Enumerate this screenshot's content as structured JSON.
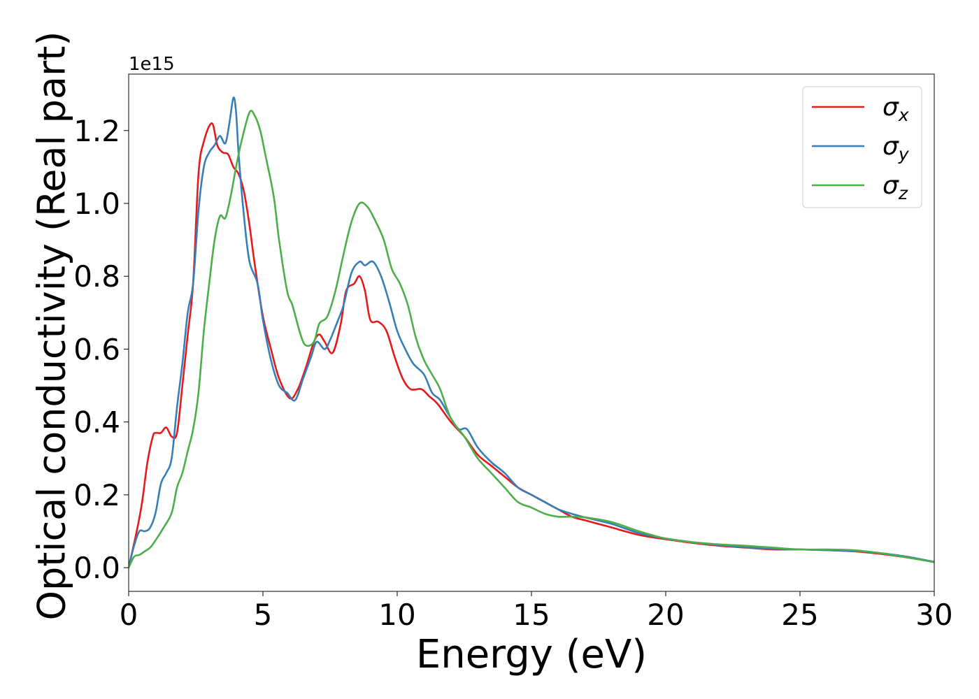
{
  "chart_data": {
    "type": "line",
    "title": "",
    "xlabel": "Energy (eV)",
    "ylabel": "Optical conductivity (Real part)",
    "offset_text": "1e15",
    "xlim": [
      0,
      30
    ],
    "ylim": [
      -0.065,
      1.355
    ],
    "x_ticks": [
      0,
      5,
      10,
      15,
      20,
      25,
      30
    ],
    "y_ticks": [
      0.0,
      0.2,
      0.4,
      0.6,
      0.8,
      1.0,
      1.2
    ],
    "x_tick_labels": [
      "0",
      "5",
      "10",
      "15",
      "20",
      "25",
      "30"
    ],
    "y_tick_labels": [
      "0.0",
      "0.2",
      "0.4",
      "0.6",
      "0.8",
      "1.0",
      "1.2"
    ],
    "grid": false,
    "legend_position": "top-right",
    "series": [
      {
        "name": "σx",
        "symbol": "σ",
        "sub": "x",
        "color": "#e41a1c",
        "points": [
          [
            0,
            0
          ],
          [
            0.3,
            0.1
          ],
          [
            0.5,
            0.18
          ],
          [
            0.7,
            0.29
          ],
          [
            0.9,
            0.36
          ],
          [
            1.0,
            0.37
          ],
          [
            1.2,
            0.37
          ],
          [
            1.4,
            0.385
          ],
          [
            1.6,
            0.36
          ],
          [
            1.8,
            0.37
          ],
          [
            2.0,
            0.5
          ],
          [
            2.2,
            0.64
          ],
          [
            2.4,
            0.78
          ],
          [
            2.6,
            1.08
          ],
          [
            2.8,
            1.17
          ],
          [
            3.1,
            1.22
          ],
          [
            3.3,
            1.16
          ],
          [
            3.5,
            1.14
          ],
          [
            3.7,
            1.135
          ],
          [
            3.9,
            1.1
          ],
          [
            4.1,
            1.08
          ],
          [
            4.3,
            1.03
          ],
          [
            4.5,
            0.94
          ],
          [
            4.7,
            0.83
          ],
          [
            5.0,
            0.69
          ],
          [
            5.3,
            0.6
          ],
          [
            5.6,
            0.52
          ],
          [
            6.0,
            0.465
          ],
          [
            6.3,
            0.49
          ],
          [
            6.6,
            0.55
          ],
          [
            6.9,
            0.62
          ],
          [
            7.1,
            0.64
          ],
          [
            7.3,
            0.62
          ],
          [
            7.6,
            0.59
          ],
          [
            7.9,
            0.67
          ],
          [
            8.1,
            0.76
          ],
          [
            8.4,
            0.78
          ],
          [
            8.6,
            0.8
          ],
          [
            8.8,
            0.76
          ],
          [
            9.0,
            0.68
          ],
          [
            9.3,
            0.675
          ],
          [
            9.6,
            0.65
          ],
          [
            9.9,
            0.58
          ],
          [
            10.2,
            0.52
          ],
          [
            10.5,
            0.49
          ],
          [
            10.9,
            0.49
          ],
          [
            11.2,
            0.47
          ],
          [
            11.5,
            0.45
          ],
          [
            12.0,
            0.4
          ],
          [
            12.5,
            0.36
          ],
          [
            13.0,
            0.31
          ],
          [
            13.5,
            0.28
          ],
          [
            14.0,
            0.25
          ],
          [
            14.5,
            0.22
          ],
          [
            15.0,
            0.2
          ],
          [
            15.5,
            0.18
          ],
          [
            16.0,
            0.16
          ],
          [
            16.5,
            0.14
          ],
          [
            17.0,
            0.13
          ],
          [
            17.5,
            0.12
          ],
          [
            18.0,
            0.11
          ],
          [
            19.0,
            0.09
          ],
          [
            20.0,
            0.078
          ],
          [
            21.0,
            0.068
          ],
          [
            22.0,
            0.06
          ],
          [
            23.0,
            0.055
          ],
          [
            24.0,
            0.05
          ],
          [
            25.0,
            0.05
          ],
          [
            26.0,
            0.048
          ],
          [
            27.0,
            0.045
          ],
          [
            28.0,
            0.038
          ],
          [
            29.0,
            0.028
          ],
          [
            30.0,
            0.016
          ]
        ]
      },
      {
        "name": "σy",
        "symbol": "σ",
        "sub": "y",
        "color": "#377eb8",
        "points": [
          [
            0,
            0
          ],
          [
            0.2,
            0.06
          ],
          [
            0.4,
            0.1
          ],
          [
            0.6,
            0.1
          ],
          [
            0.8,
            0.11
          ],
          [
            1.0,
            0.15
          ],
          [
            1.2,
            0.23
          ],
          [
            1.4,
            0.26
          ],
          [
            1.6,
            0.3
          ],
          [
            1.8,
            0.44
          ],
          [
            2.0,
            0.56
          ],
          [
            2.2,
            0.7
          ],
          [
            2.4,
            0.78
          ],
          [
            2.6,
            0.98
          ],
          [
            2.8,
            1.1
          ],
          [
            3.0,
            1.14
          ],
          [
            3.2,
            1.16
          ],
          [
            3.4,
            1.185
          ],
          [
            3.6,
            1.165
          ],
          [
            3.75,
            1.22
          ],
          [
            3.9,
            1.29
          ],
          [
            4.0,
            1.25
          ],
          [
            4.1,
            1.13
          ],
          [
            4.3,
            0.96
          ],
          [
            4.5,
            0.84
          ],
          [
            4.8,
            0.78
          ],
          [
            5.0,
            0.68
          ],
          [
            5.3,
            0.57
          ],
          [
            5.6,
            0.5
          ],
          [
            5.9,
            0.48
          ],
          [
            6.2,
            0.46
          ],
          [
            6.5,
            0.52
          ],
          [
            6.8,
            0.58
          ],
          [
            7.0,
            0.62
          ],
          [
            7.3,
            0.6
          ],
          [
            7.5,
            0.625
          ],
          [
            7.8,
            0.68
          ],
          [
            8.0,
            0.72
          ],
          [
            8.3,
            0.81
          ],
          [
            8.6,
            0.84
          ],
          [
            8.8,
            0.83
          ],
          [
            9.1,
            0.84
          ],
          [
            9.4,
            0.8
          ],
          [
            9.7,
            0.73
          ],
          [
            10.0,
            0.65
          ],
          [
            10.3,
            0.6
          ],
          [
            10.6,
            0.56
          ],
          [
            11.0,
            0.53
          ],
          [
            11.3,
            0.48
          ],
          [
            11.6,
            0.46
          ],
          [
            12.0,
            0.41
          ],
          [
            12.3,
            0.38
          ],
          [
            12.6,
            0.38
          ],
          [
            13.0,
            0.33
          ],
          [
            13.5,
            0.29
          ],
          [
            14.0,
            0.26
          ],
          [
            14.5,
            0.22
          ],
          [
            15.0,
            0.2
          ],
          [
            15.5,
            0.18
          ],
          [
            16.0,
            0.16
          ],
          [
            16.5,
            0.148
          ],
          [
            17.0,
            0.138
          ],
          [
            18.0,
            0.12
          ],
          [
            19.0,
            0.095
          ],
          [
            20.0,
            0.08
          ],
          [
            21.0,
            0.07
          ],
          [
            22.0,
            0.062
          ],
          [
            23.0,
            0.056
          ],
          [
            24.0,
            0.052
          ],
          [
            25.0,
            0.05
          ],
          [
            26.0,
            0.048
          ],
          [
            27.0,
            0.046
          ],
          [
            28.0,
            0.04
          ],
          [
            29.0,
            0.03
          ],
          [
            30.0,
            0.016
          ]
        ]
      },
      {
        "name": "σz",
        "symbol": "σ",
        "sub": "z",
        "color": "#4daf4a",
        "points": [
          [
            0,
            0
          ],
          [
            0.2,
            0.03
          ],
          [
            0.4,
            0.035
          ],
          [
            0.6,
            0.045
          ],
          [
            0.8,
            0.055
          ],
          [
            1.0,
            0.075
          ],
          [
            1.3,
            0.11
          ],
          [
            1.6,
            0.15
          ],
          [
            1.8,
            0.22
          ],
          [
            2.0,
            0.26
          ],
          [
            2.2,
            0.32
          ],
          [
            2.4,
            0.38
          ],
          [
            2.6,
            0.48
          ],
          [
            2.8,
            0.65
          ],
          [
            3.0,
            0.78
          ],
          [
            3.2,
            0.9
          ],
          [
            3.4,
            0.965
          ],
          [
            3.6,
            0.96
          ],
          [
            3.8,
            1.02
          ],
          [
            4.0,
            1.1
          ],
          [
            4.2,
            1.17
          ],
          [
            4.5,
            1.25
          ],
          [
            4.7,
            1.24
          ],
          [
            4.9,
            1.2
          ],
          [
            5.1,
            1.13
          ],
          [
            5.4,
            1.02
          ],
          [
            5.6,
            0.9
          ],
          [
            5.9,
            0.76
          ],
          [
            6.1,
            0.72
          ],
          [
            6.4,
            0.64
          ],
          [
            6.6,
            0.61
          ],
          [
            6.9,
            0.62
          ],
          [
            7.1,
            0.67
          ],
          [
            7.4,
            0.69
          ],
          [
            7.7,
            0.76
          ],
          [
            8.0,
            0.86
          ],
          [
            8.3,
            0.95
          ],
          [
            8.6,
            1.0
          ],
          [
            8.9,
            0.99
          ],
          [
            9.2,
            0.95
          ],
          [
            9.5,
            0.9
          ],
          [
            9.8,
            0.82
          ],
          [
            10.1,
            0.78
          ],
          [
            10.4,
            0.72
          ],
          [
            10.7,
            0.63
          ],
          [
            11.0,
            0.57
          ],
          [
            11.3,
            0.53
          ],
          [
            11.6,
            0.49
          ],
          [
            12.0,
            0.41
          ],
          [
            12.5,
            0.36
          ],
          [
            13.0,
            0.3
          ],
          [
            13.5,
            0.26
          ],
          [
            14.0,
            0.22
          ],
          [
            14.5,
            0.18
          ],
          [
            15.0,
            0.165
          ],
          [
            15.5,
            0.148
          ],
          [
            16.0,
            0.14
          ],
          [
            16.5,
            0.14
          ],
          [
            17.0,
            0.138
          ],
          [
            18.0,
            0.125
          ],
          [
            19.0,
            0.1
          ],
          [
            20.0,
            0.08
          ],
          [
            21.0,
            0.07
          ],
          [
            22.0,
            0.064
          ],
          [
            23.0,
            0.06
          ],
          [
            24.0,
            0.055
          ],
          [
            25.0,
            0.05
          ],
          [
            26.0,
            0.05
          ],
          [
            27.0,
            0.048
          ],
          [
            28.0,
            0.04
          ],
          [
            29.0,
            0.028
          ],
          [
            30.0,
            0.015
          ]
        ]
      }
    ]
  }
}
